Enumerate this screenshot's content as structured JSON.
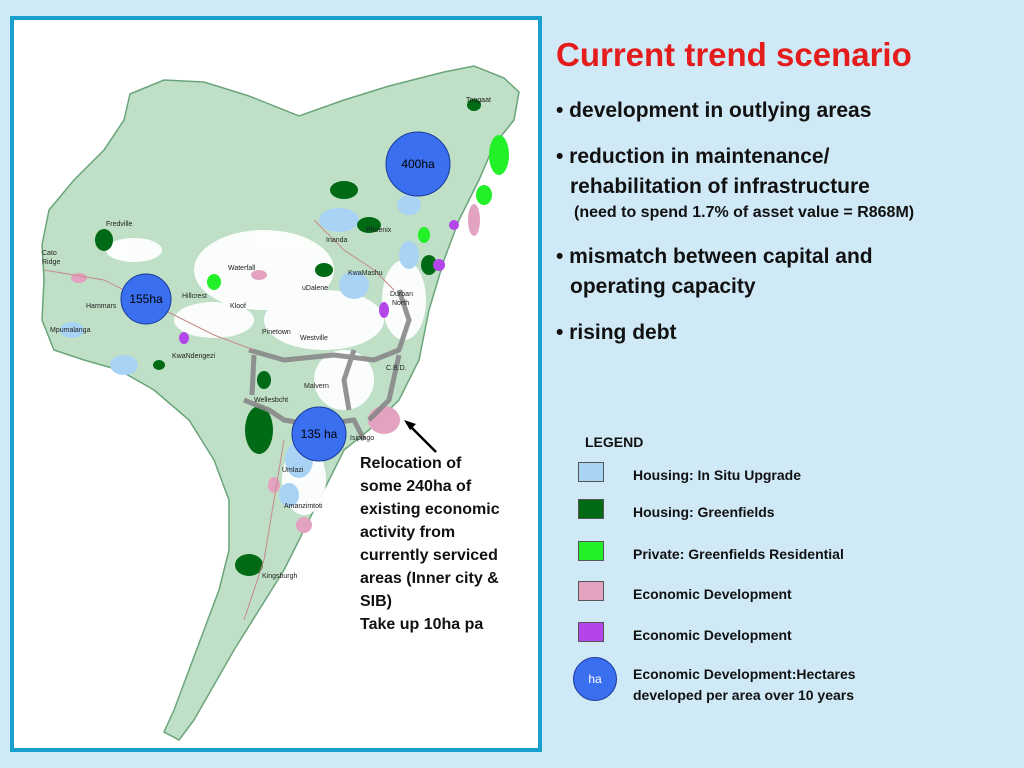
{
  "title": "Current trend scenario",
  "bullets": {
    "b1": "• development in outlying areas",
    "b2_line1": "• reduction in maintenance/",
    "b2_line2": "rehabilitation of infrastructure",
    "b2_note": "(need to spend 1.7% of asset value = R868M)",
    "b3_line1": "• mismatch between capital and",
    "b3_line2": "operating capacity",
    "b4": "• rising debt"
  },
  "callout": "Relocation of\nsome 240ha of\nexisting economic\nactivity from\ncurrently serviced\nareas (Inner city &\nSIB)\nTake up 10ha pa",
  "map": {
    "places": {
      "tongaat": "Tongaat",
      "fredville": "Fredville",
      "cato_ridge_1": "Cato",
      "cato_ridge_2": "Ridge",
      "phoenix": "Phoenix",
      "inanda": "Inanda",
      "kwamashu": "KwaMashu",
      "waterfall": "Waterfall",
      "hammarsdale": "Hammars",
      "hillcrest": "Hillcrest",
      "kloof": "Kloof",
      "durban_north_1": "Durban",
      "durban_north_2": "North",
      "ntuzuma": "uDalene",
      "mpumalanga": "Mpumalanga",
      "pinetown": "Pinetown",
      "westville": "Westville",
      "kwandengezi": "KwaNdengezi",
      "cbd": "C.B.D.",
      "malvern": "Malvern",
      "wentworth": "Wellesbcht",
      "isipingo": "Isipingo",
      "umlazi": "Umlazi",
      "amanzimtoti": "Amanzimtoti",
      "kingsburgh": "Kingsburgh"
    },
    "circles": {
      "north": "400ha",
      "west": "155ha",
      "south": "135 ha"
    }
  },
  "legend": {
    "title": "LEGEND",
    "items": [
      {
        "label": "Housing: In Situ Upgrade",
        "color": "#a9d3f5"
      },
      {
        "label": "Housing: Greenfields",
        "color": "#006a14"
      },
      {
        "label": "Private: Greenfields Residential",
        "color": "#22f028"
      },
      {
        "label": "Economic Development",
        "color": "#e3a3c0"
      },
      {
        "label": "Economic Development",
        "color": "#b445e8"
      }
    ],
    "ha_symbol": "ha",
    "ha_label": "Economic Development:Hectares\ndeveloped per area over 10 years"
  }
}
